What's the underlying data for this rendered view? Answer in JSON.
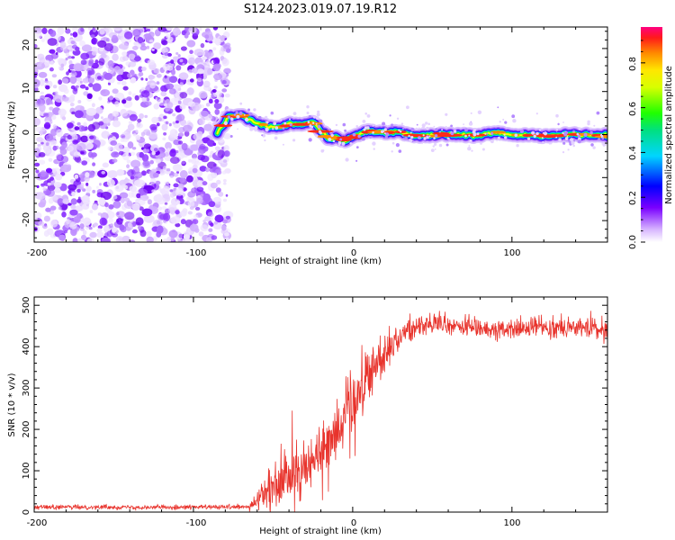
{
  "colors": {
    "snr_line": "#e8332c",
    "frame": "#000000",
    "background": "#ffffff"
  },
  "chart_data": [
    {
      "type": "heatmap",
      "title": "S124.2023.019.07.19.R12",
      "xlabel": "Height of straight line (km)",
      "ylabel": "Frequency (Hz)",
      "xlim": [
        -200,
        160
      ],
      "ylim": [
        -25,
        25
      ],
      "xticks": [
        -200,
        -100,
        0,
        100
      ],
      "yticks": [
        20,
        10,
        0,
        -10,
        -20
      ],
      "noise_region_x": [
        -200,
        -78
      ],
      "ridge": {
        "x": [
          -85,
          -78,
          -70,
          -62,
          -55,
          -48,
          -40,
          -32,
          -25,
          -20,
          -15,
          -10,
          -5,
          0,
          10,
          20,
          30,
          40,
          60,
          80,
          90,
          100,
          120,
          140,
          160
        ],
        "y": [
          0.5,
          4,
          4.5,
          3,
          2,
          1.5,
          2.5,
          2.5,
          3,
          1,
          -1,
          -0.5,
          -1.5,
          -0.5,
          0.8,
          0.5,
          0.5,
          -0.3,
          0,
          -0.3,
          0.5,
          -0.1,
          -0.2,
          0,
          -0.2
        ]
      },
      "colorbar": {
        "label": "Normalized spectral amplitude",
        "ticks": [
          "0.0",
          "0.2",
          "0.4",
          "0.6",
          "0.8"
        ],
        "range": [
          0,
          0.96
        ]
      }
    },
    {
      "type": "line",
      "xlabel": "Height of straight line (km)",
      "ylabel": "SNR (10 * v/v)",
      "xlim": [
        -200,
        160
      ],
      "ylim": [
        0,
        520
      ],
      "xticks": [
        -200,
        -100,
        0,
        100
      ],
      "yticks": [
        0,
        100,
        200,
        300,
        400,
        500
      ],
      "series": [
        {
          "name": "SNR",
          "trend_x": [
            -200,
            -65,
            -55,
            -45,
            -30,
            -20,
            -10,
            -5,
            5,
            15,
            25,
            35,
            45,
            60,
            80,
            100,
            120,
            140,
            160
          ],
          "trend_y": [
            12,
            12,
            45,
            60,
            110,
            160,
            200,
            240,
            300,
            360,
            410,
            440,
            455,
            450,
            445,
            440,
            450,
            445,
            440
          ],
          "noise_amplitude_y": [
            5,
            5,
            45,
            55,
            60,
            60,
            65,
            65,
            65,
            55,
            40,
            30,
            25,
            22,
            22,
            22,
            22,
            22,
            22
          ]
        }
      ]
    }
  ]
}
